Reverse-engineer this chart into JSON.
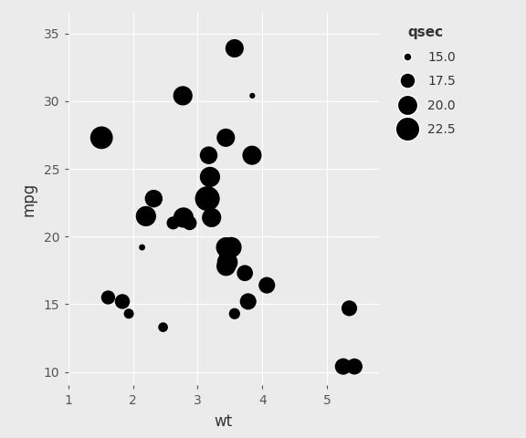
{
  "wt": [
    2.62,
    2.875,
    2.32,
    3.215,
    3.44,
    3.46,
    3.57,
    3.19,
    3.15,
    3.44,
    3.44,
    4.07,
    3.73,
    3.78,
    5.25,
    5.424,
    5.345,
    2.2,
    1.615,
    1.835,
    2.465,
    3.52,
    3.435,
    3.84,
    3.845,
    1.935,
    2.14,
    1.513,
    3.17,
    2.77,
    3.57,
    2.78
  ],
  "mpg": [
    21.0,
    21.0,
    22.8,
    21.4,
    18.7,
    18.1,
    14.3,
    24.4,
    22.8,
    19.2,
    17.8,
    16.4,
    17.3,
    15.2,
    10.4,
    10.4,
    14.7,
    21.5,
    15.5,
    15.2,
    13.3,
    19.2,
    27.3,
    26.0,
    30.4,
    14.3,
    19.2,
    27.3,
    26.0,
    30.4,
    33.9,
    21.4
  ],
  "qsec": [
    16.46,
    17.02,
    18.61,
    19.44,
    17.02,
    20.22,
    15.84,
    20.0,
    22.9,
    20.0,
    19.44,
    17.98,
    17.82,
    17.98,
    17.98,
    17.82,
    17.6,
    20.01,
    16.87,
    17.3,
    15.41,
    20.22,
    18.9,
    19.4,
    14.5,
    15.5,
    14.6,
    21.47,
    18.61,
    19.47,
    18.9,
    20.01
  ],
  "bg_color": "#EBEBEB",
  "grid_color": "#ffffff",
  "point_color": "#000000",
  "xlabel": "wt",
  "ylabel": "mpg",
  "legend_title": "qsec",
  "legend_values": [
    15.0,
    17.5,
    20.0,
    22.5
  ],
  "xlim": [
    1.0,
    5.8
  ],
  "ylim": [
    9.0,
    36.5
  ],
  "xticks": [
    1,
    2,
    3,
    4,
    5
  ],
  "yticks": [
    10,
    15,
    20,
    25,
    30,
    35
  ],
  "qsec_min": 14.5,
  "qsec_max": 22.9,
  "s_min": 20,
  "s_max": 380
}
